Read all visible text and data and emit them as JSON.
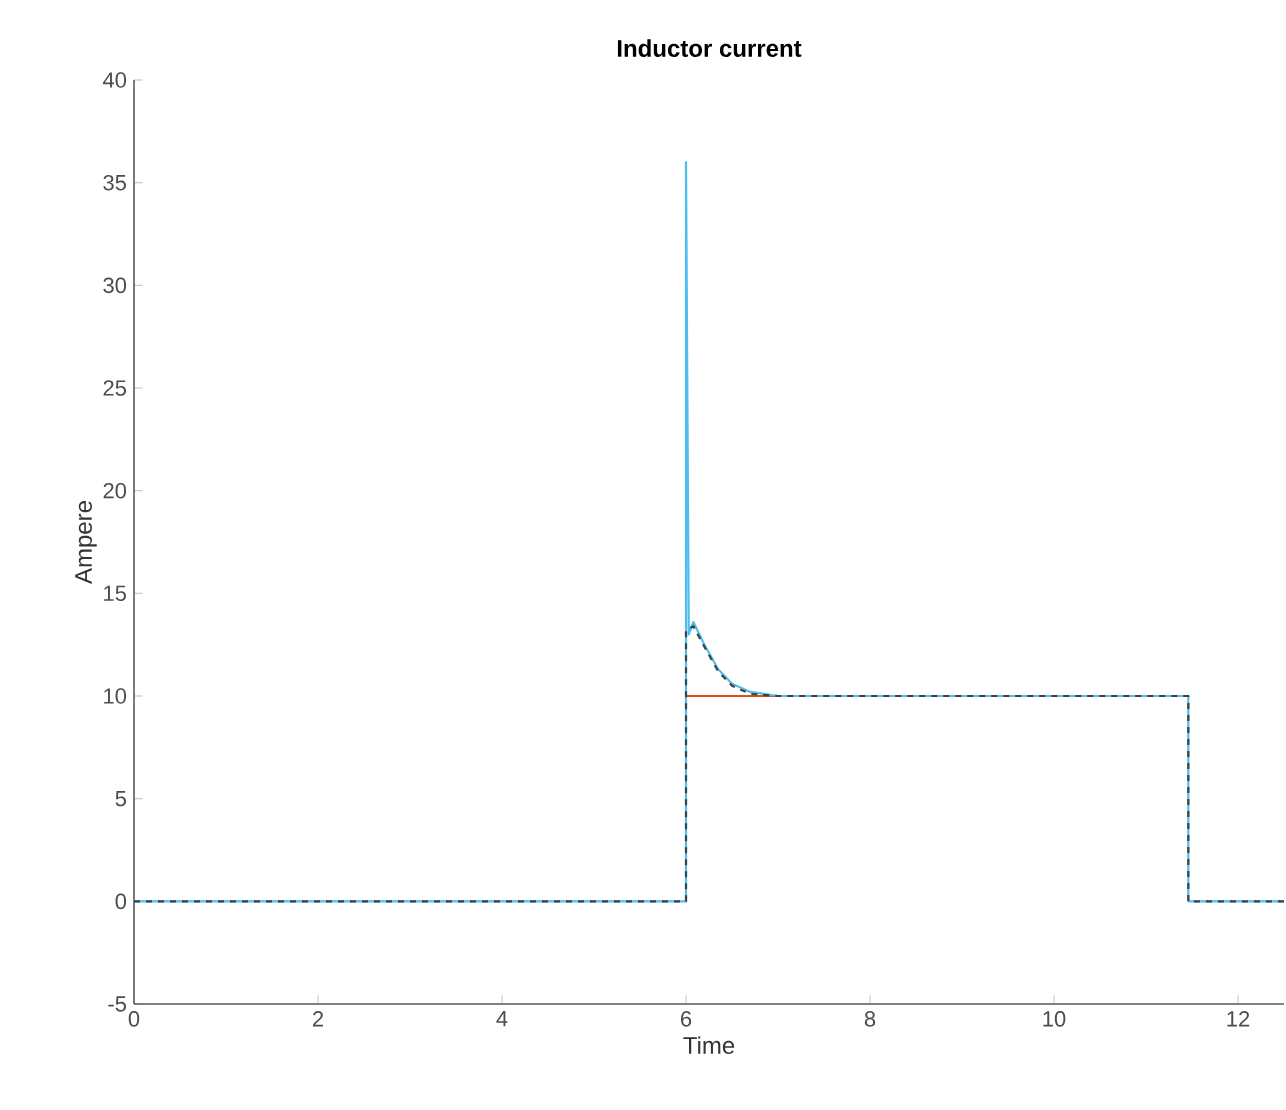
{
  "chart_data": {
    "type": "line",
    "title": "Inductor current",
    "xlabel": "Time",
    "ylabel": "Ampere",
    "xlim": [
      0,
      12.5
    ],
    "ylim": [
      -5,
      40
    ],
    "xticks": [
      0,
      2,
      4,
      6,
      8,
      10,
      12
    ],
    "yticks": [
      -5,
      0,
      5,
      10,
      15,
      20,
      25,
      30,
      35,
      40
    ],
    "grid": false,
    "marker": "none",
    "series": [
      {
        "color": "#d95319",
        "line_style": "solid",
        "x": [
          6,
          7
        ],
        "values": [
          10,
          10
        ]
      },
      {
        "color": "#4dbeee",
        "line_style": "solid",
        "x": [
          0,
          6,
          6,
          6.03,
          6.08,
          6.2,
          6.35,
          6.5,
          6.7,
          7,
          11.46,
          11.46,
          12.5
        ],
        "values": [
          0,
          0,
          36,
          13,
          13.6,
          12.5,
          11.3,
          10.6,
          10.2,
          10,
          10,
          0,
          0
        ]
      },
      {
        "color": "#404040",
        "line_style": "dashed",
        "x": [
          0,
          6,
          6,
          6.08,
          6.2,
          6.35,
          6.5,
          6.7,
          7,
          11.46,
          11.46,
          12.5
        ],
        "values": [
          0,
          0,
          13.2,
          13.4,
          12.4,
          11.2,
          10.5,
          10.1,
          10,
          10,
          0,
          0
        ]
      }
    ]
  }
}
